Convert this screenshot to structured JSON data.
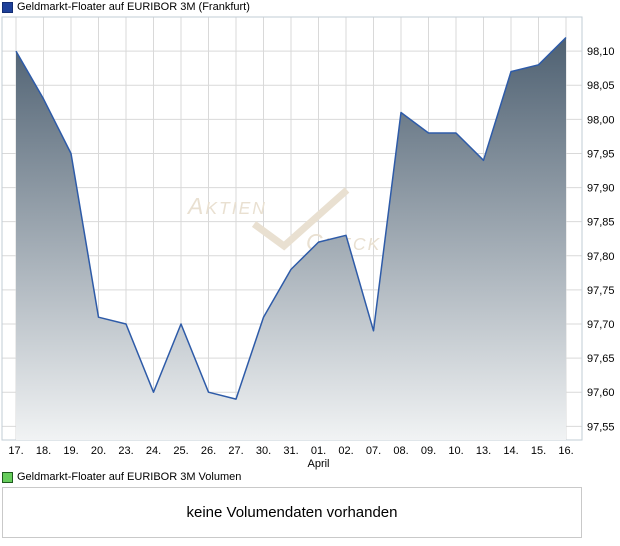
{
  "price_chart": {
    "legend": {
      "label": "Geldmarkt-Floater auf EURIBOR 3M (Frankfurt)",
      "swatch_color": "#1e4099",
      "swatch_border": "#132d73"
    },
    "watermark": {
      "word1": "AKTIEN",
      "word2": "CHECK",
      "color": "#e9e0d1"
    },
    "y_axis": {
      "side": "right"
    },
    "x_axis": {
      "month_label": "April",
      "month_anchor_index": 11
    }
  },
  "volume_chart": {
    "legend": {
      "label": "Geldmarkt-Floater auf EURIBOR 3M Volumen",
      "swatch_color": "#66cd5c",
      "swatch_border": "#1e5a1e"
    },
    "message": "keine Volumendaten vorhanden"
  },
  "chart_data": {
    "type": "area",
    "title": "Geldmarkt-Floater auf EURIBOR 3M (Frankfurt)",
    "categories": [
      "17.",
      "18.",
      "19.",
      "20.",
      "23.",
      "24.",
      "25.",
      "26.",
      "27.",
      "30.",
      "31.",
      "01.",
      "02.",
      "07.",
      "08.",
      "09.",
      "10.",
      "13.",
      "14.",
      "15.",
      "16."
    ],
    "values": [
      98.1,
      98.03,
      97.95,
      97.71,
      97.7,
      97.6,
      97.7,
      97.6,
      97.59,
      97.71,
      97.78,
      97.82,
      97.83,
      97.69,
      98.01,
      97.98,
      97.98,
      97.94,
      98.07,
      98.08,
      98.12
    ],
    "y_ticks": [
      "98,10",
      "98,05",
      "98,00",
      "97,95",
      "97,90",
      "97,85",
      "97,80",
      "97,75",
      "97,70",
      "97,65",
      "97,60",
      "97,55"
    ],
    "xlabel": "April",
    "ylabel": "",
    "ylim": [
      97.53,
      98.15
    ],
    "grid": true,
    "legend_position": "top-left",
    "line_color": "#2e5ba8",
    "fill_gradient_top": "#46596b",
    "fill_gradient_bottom": "#f1f3f4",
    "grid_color": "#d9d9d9",
    "border_color": "#c2cdd6"
  }
}
